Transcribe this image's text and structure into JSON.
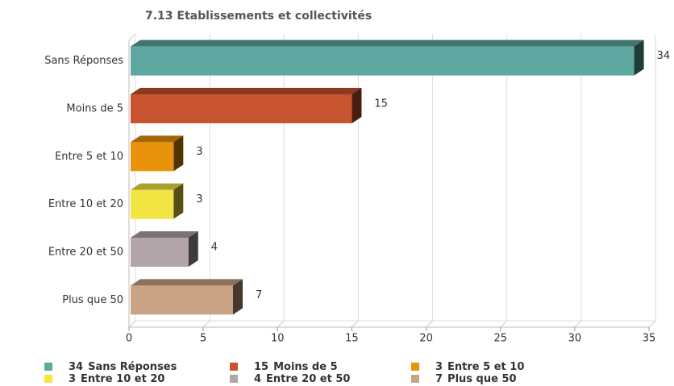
{
  "chart_data": {
    "type": "hbar3d",
    "title": "7.13 Etablissements et collectivités",
    "categories": [
      "Sans Réponses",
      "Moins de 5",
      "Entre 5 et 10",
      "Entre 10 et 20",
      "Entre 20 et 50",
      "Plus que 50"
    ],
    "values": [
      34,
      15,
      3,
      3,
      4,
      7
    ],
    "colors": [
      "#5fa8a1",
      "#c8532f",
      "#e8930b",
      "#f3e544",
      "#b1a5a9",
      "#c9a383"
    ],
    "xlim": [
      0,
      35
    ],
    "xticks": [
      0,
      5,
      10,
      15,
      20,
      25,
      30,
      35
    ],
    "grid": true
  }
}
